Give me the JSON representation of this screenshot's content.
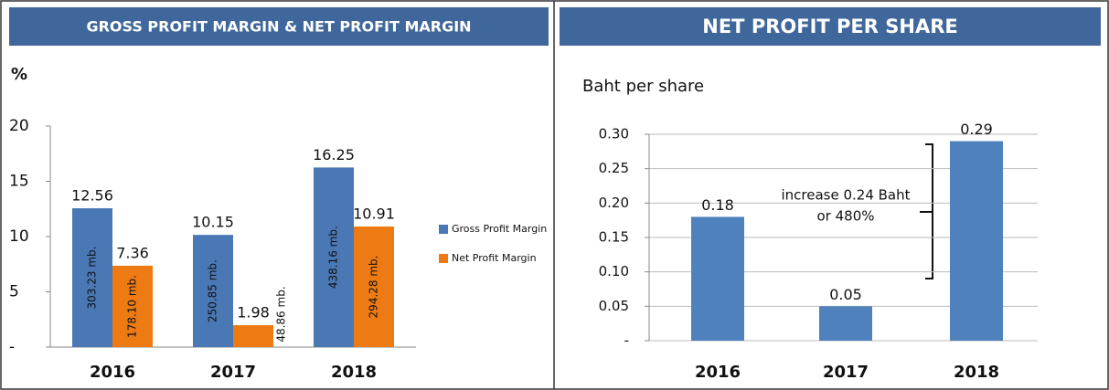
{
  "chart_data": [
    {
      "type": "bar",
      "title": "GROSS PROFIT MARGIN & NET PROFIT MARGIN",
      "y_label": "%",
      "categories": [
        "2016",
        "2017",
        "2018"
      ],
      "series": [
        {
          "name": "Gross Profit Margin",
          "color": "#4a78b5",
          "values": [
            12.56,
            10.15,
            16.25
          ],
          "bar_labels": [
            "303.23 mb.",
            "250.85 mb.",
            "438.16 mb."
          ]
        },
        {
          "name": "Net Profit Margin",
          "color": "#ed7a12",
          "values": [
            7.36,
            1.98,
            10.91
          ],
          "bar_labels": [
            "178.10 mb.",
            "48.86 mb.",
            "294.28 mb."
          ]
        }
      ],
      "ylim": [
        0,
        20
      ],
      "yticks": [
        {
          "value": 0,
          "label": "-"
        },
        5,
        10,
        15,
        20
      ],
      "grid": false,
      "legend": "right"
    },
    {
      "type": "bar",
      "title": "NET PROFIT PER SHARE",
      "y_label": "Baht per share",
      "categories": [
        "2016",
        "2017",
        "2018"
      ],
      "values": [
        0.18,
        0.05,
        0.29
      ],
      "color": "#4f81bd",
      "ylim": [
        0,
        0.3
      ],
      "yticks": [
        {
          "value": 0,
          "label": "-"
        },
        0.05,
        {
          "value": 0.1,
          "label": "0.10"
        },
        0.15,
        {
          "value": 0.2,
          "label": "0.20"
        },
        0.25,
        {
          "value": 0.3,
          "label": "0.30"
        }
      ],
      "grid": true,
      "annotation": [
        "increase 0.24 Baht",
        "or 480%"
      ]
    }
  ]
}
